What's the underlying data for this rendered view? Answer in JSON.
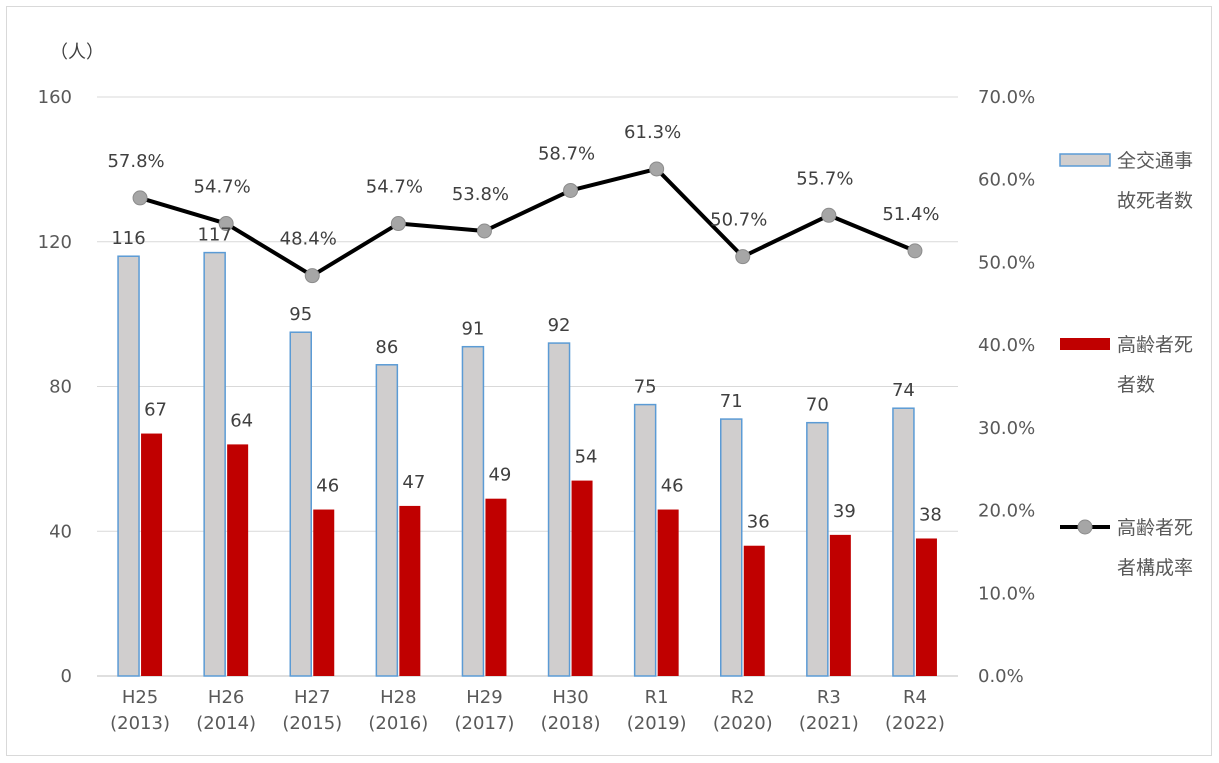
{
  "chart_data": {
    "type": "bar",
    "y_unit_label": "（人）",
    "categories": [
      [
        "H25",
        "(2013)"
      ],
      [
        "H26",
        "(2014)"
      ],
      [
        "H27",
        "(2015)"
      ],
      [
        "H28",
        "(2016)"
      ],
      [
        "H29",
        "(2017)"
      ],
      [
        "H30",
        "(2018)"
      ],
      [
        "R1",
        "(2019)"
      ],
      [
        "R2",
        "(2020)"
      ],
      [
        "R3",
        "(2021)"
      ],
      [
        "R4",
        "(2022)"
      ]
    ],
    "series": [
      {
        "name": [
          "全交通事",
          "故死者数"
        ],
        "type": "bar",
        "axis": "left",
        "values": [
          116,
          117,
          95,
          86,
          91,
          92,
          75,
          71,
          70,
          74
        ],
        "color": "#d0cece",
        "border": "#5b9bd5"
      },
      {
        "name": [
          "高齢者死",
          "者数"
        ],
        "type": "bar",
        "axis": "left",
        "values": [
          67,
          64,
          46,
          47,
          49,
          54,
          46,
          36,
          39,
          38
        ],
        "color": "#c00000"
      },
      {
        "name": [
          "高齢者死",
          "者構成率"
        ],
        "type": "line",
        "axis": "right",
        "values": [
          57.8,
          54.7,
          48.4,
          54.7,
          53.8,
          58.7,
          61.3,
          50.7,
          55.7,
          51.4
        ],
        "labels": [
          "57.8%",
          "54.7%",
          "48.4%",
          "54.7%",
          "53.8%",
          "58.7%",
          "61.3%",
          "50.7%",
          "55.7%",
          "51.4%"
        ],
        "color": "#000000",
        "marker_color": "#a6a6a6"
      }
    ],
    "y_left": {
      "min": 0,
      "max": 160,
      "ticks": [
        "0",
        "40",
        "80",
        "120",
        "160"
      ]
    },
    "y_right": {
      "min": 0,
      "max": 70,
      "ticks": [
        "0.0%",
        "10.0%",
        "20.0%",
        "30.0%",
        "40.0%",
        "50.0%",
        "60.0%",
        "70.0%"
      ]
    },
    "grid": true,
    "legend_position": "right"
  }
}
